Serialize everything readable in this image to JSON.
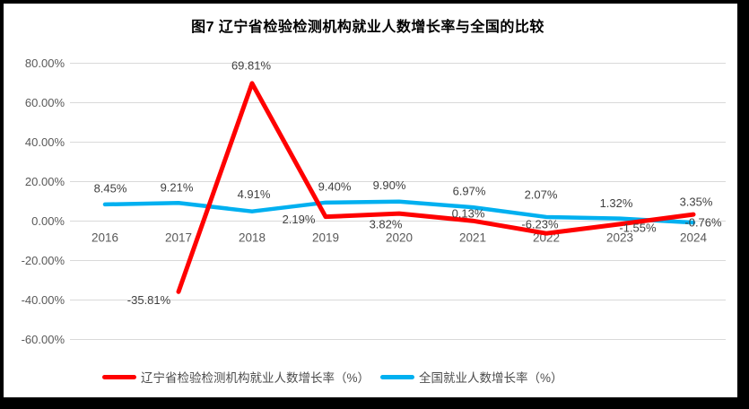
{
  "chart_data": {
    "type": "line",
    "title": "图7  辽宁省检验检测机构就业人数增长率与全国的比较",
    "categories": [
      "2016",
      "2017",
      "2018",
      "2019",
      "2020",
      "2021",
      "2022",
      "2023",
      "2024"
    ],
    "y_ticks": [
      {
        "value": 80,
        "label": "80.00%"
      },
      {
        "value": 60,
        "label": "60.00%"
      },
      {
        "value": 40,
        "label": "40.00%"
      },
      {
        "value": 20,
        "label": "20.00%"
      },
      {
        "value": 0,
        "label": "0.00%"
      },
      {
        "value": -20,
        "label": "-20.00%"
      },
      {
        "value": -40,
        "label": "-40.00%"
      },
      {
        "value": -60,
        "label": "-60.00%"
      }
    ],
    "ylim": [
      -60,
      80
    ],
    "grid": true,
    "legend_position": "bottom",
    "series": [
      {
        "name": "辽宁省检验检测机构就业人数增长率（%）",
        "color": "#FF0000",
        "values": [
          null,
          -35.81,
          69.81,
          2.19,
          3.82,
          0.13,
          -6.23,
          -1.55,
          3.35
        ],
        "labels": [
          "",
          "-35.81%",
          "69.81%",
          "2.19%",
          "3.82%",
          "0.13%",
          "-6.23%",
          "-1.55%",
          "3.35%"
        ]
      },
      {
        "name": "全国就业人数增长率（%）",
        "color": "#00B0F0",
        "values": [
          8.45,
          9.21,
          4.91,
          9.4,
          9.9,
          6.97,
          2.07,
          1.32,
          -0.76
        ],
        "labels": [
          "8.45%",
          "9.21%",
          "4.91%",
          "9.40%",
          "9.90%",
          "6.97%",
          "2.07%",
          "1.32%",
          "-0.76%"
        ]
      }
    ]
  }
}
